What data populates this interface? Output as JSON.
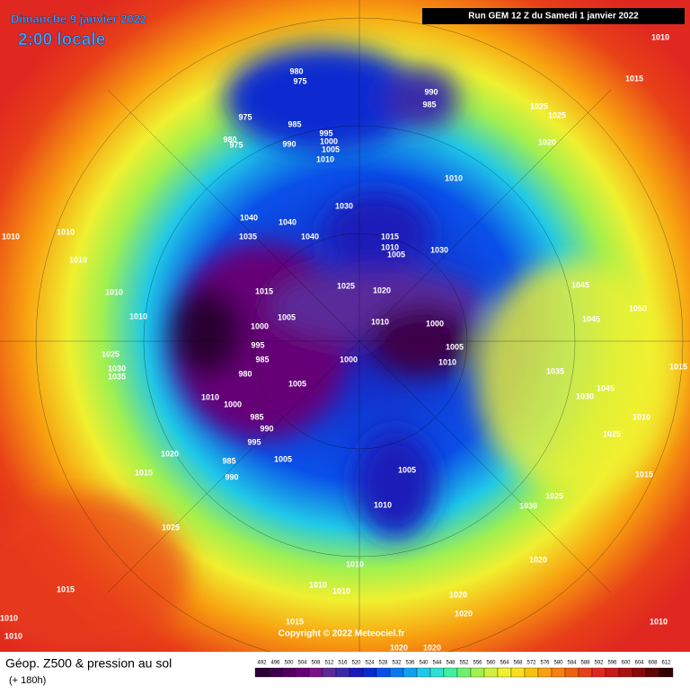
{
  "header": {
    "date": "Dimanche 9 janvier 2022",
    "time": "2:00 locale",
    "run": "Run GEM 12 Z du Samedi 1 janvier 2022"
  },
  "footer": {
    "title": "Géop. Z500 & pression au sol",
    "lead": "(+ 180h)",
    "copyright": "Copyright © 2022 Meteociel.fr"
  },
  "legend": {
    "values": [
      492,
      496,
      500,
      504,
      508,
      512,
      516,
      520,
      524,
      528,
      532,
      536,
      540,
      544,
      548,
      552,
      556,
      560,
      564,
      568,
      572,
      576,
      580,
      584,
      588,
      592,
      596,
      600,
      604,
      608,
      612
    ],
    "colors": [
      "#2a0033",
      "#3c004a",
      "#520060",
      "#660077",
      "#7a108a",
      "#5a2a9a",
      "#3a2aa8",
      "#1a1ab8",
      "#0a2ad0",
      "#0a50e8",
      "#0a78f0",
      "#10a0f0",
      "#20c8e8",
      "#30e0d0",
      "#40f0a0",
      "#70f070",
      "#a0f050",
      "#d0f040",
      "#f0f030",
      "#f8e020",
      "#f8c010",
      "#f8a010",
      "#f88010",
      "#f06010",
      "#e84018",
      "#e02820",
      "#c81818",
      "#a81010",
      "#880808",
      "#600404",
      "#300000"
    ]
  },
  "isobars": [
    1010,
    1015,
    980,
    975,
    990,
    985,
    1025,
    1025,
    975,
    985,
    995,
    1000,
    990,
    1005,
    980,
    975,
    1010,
    1020,
    1010,
    1030,
    1040,
    1040,
    1040,
    1035,
    1015,
    1010,
    1005,
    1030,
    1010,
    1010,
    1010,
    1010,
    1015,
    1025,
    1020,
    1045,
    1050,
    1010,
    1005,
    1000,
    1010,
    1000,
    1045,
    1005,
    1010,
    995,
    1000,
    985,
    980,
    1035,
    1015,
    1025,
    1030,
    1035,
    1005,
    1010,
    1000,
    1030,
    1045,
    985,
    990,
    1010,
    995,
    1025,
    1020,
    1005,
    985,
    1005,
    1015,
    990,
    1015,
    1025,
    1010,
    1030,
    1025,
    1010,
    1020,
    1010,
    1010,
    1015,
    1020,
    1020,
    1010,
    1010,
    1015,
    1010,
    1020,
    1020
  ]
}
